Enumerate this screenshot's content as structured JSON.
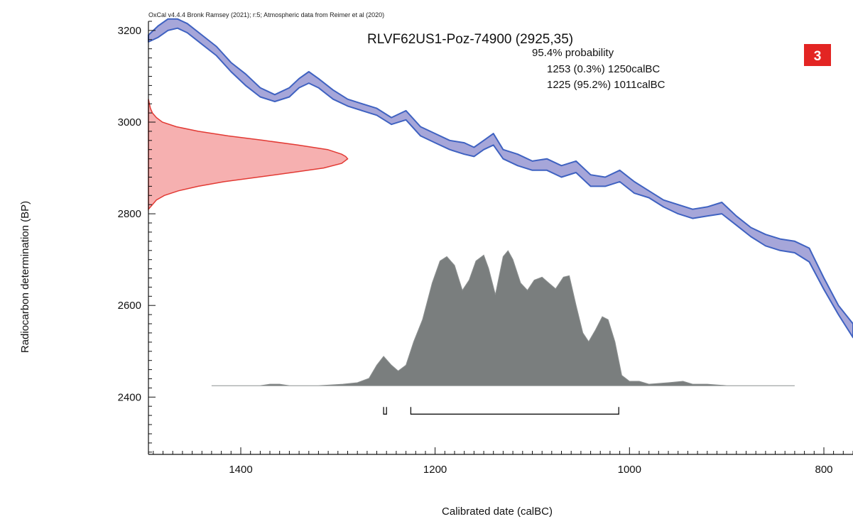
{
  "chart_data": {
    "type": "area",
    "credit": "OxCal v4.4.4 Bronk Ramsey (2021); r:5; Atmospheric data from Reimer et al (2020)",
    "title": "RLVF62US1-Poz-74900 (2925,35)",
    "probability_heading": "95.4% probability",
    "ranges": [
      {
        "label": "1253 (0.3%) 1250calBC",
        "from": 1253,
        "to": 1250
      },
      {
        "label": "1225 (95.2%) 1011calBC",
        "from": 1225,
        "to": 1011
      }
    ],
    "badge": "3",
    "xlabel": "Calibrated date (calBC)",
    "ylabel": "Radiocarbon determination (BP)",
    "xlim": [
      1495,
      770
    ],
    "ylim": [
      2275,
      3220
    ],
    "x_ticks": [
      1400,
      1200,
      1000,
      800
    ],
    "y_ticks": [
      2400,
      2600,
      2800,
      3000,
      3200
    ],
    "colors": {
      "curve_fill": "#a6a6d9",
      "curve_line": "#3f62c1",
      "measurement_fill": "#f6b0b0",
      "measurement_line": "#e23a34",
      "posterior_fill": "#7a7e7e",
      "badge": "#e32523"
    },
    "calibration_curve": {
      "dates": [
        1495,
        1485,
        1475,
        1465,
        1455,
        1440,
        1425,
        1410,
        1395,
        1380,
        1365,
        1350,
        1340,
        1330,
        1320,
        1305,
        1290,
        1275,
        1260,
        1245,
        1230,
        1215,
        1200,
        1185,
        1170,
        1160,
        1150,
        1140,
        1130,
        1115,
        1100,
        1085,
        1070,
        1055,
        1040,
        1025,
        1010,
        995,
        980,
        965,
        950,
        935,
        920,
        905,
        890,
        875,
        860,
        845,
        830,
        815,
        800,
        785,
        770
      ],
      "upper": [
        3190,
        3210,
        3225,
        3225,
        3215,
        3190,
        3165,
        3130,
        3105,
        3075,
        3060,
        3075,
        3095,
        3110,
        3095,
        3070,
        3050,
        3040,
        3030,
        3010,
        3025,
        2990,
        2975,
        2960,
        2955,
        2945,
        2960,
        2975,
        2940,
        2930,
        2915,
        2920,
        2905,
        2915,
        2885,
        2880,
        2895,
        2870,
        2850,
        2830,
        2820,
        2810,
        2815,
        2825,
        2795,
        2770,
        2755,
        2745,
        2740,
        2725,
        2660,
        2600,
        2560
      ],
      "lower": [
        3175,
        3185,
        3200,
        3205,
        3195,
        3170,
        3145,
        3110,
        3080,
        3055,
        3045,
        3055,
        3075,
        3085,
        3075,
        3050,
        3035,
        3025,
        3015,
        2995,
        3005,
        2970,
        2955,
        2940,
        2930,
        2925,
        2940,
        2950,
        2920,
        2905,
        2895,
        2895,
        2880,
        2890,
        2860,
        2860,
        2870,
        2845,
        2835,
        2815,
        2800,
        2790,
        2795,
        2800,
        2775,
        2750,
        2730,
        2720,
        2715,
        2695,
        2635,
        2580,
        2530
      ]
    },
    "measurement_distribution": {
      "bp": [
        2810,
        2820,
        2830,
        2840,
        2850,
        2860,
        2870,
        2880,
        2890,
        2900,
        2910,
        2920,
        2925,
        2930,
        2940,
        2950,
        2960,
        2970,
        2980,
        2990,
        3000,
        3010,
        3020,
        3030,
        3040,
        3050
      ],
      "density": [
        0.0,
        0.02,
        0.04,
        0.08,
        0.15,
        0.25,
        0.38,
        0.55,
        0.72,
        0.88,
        0.97,
        1.0,
        0.99,
        0.97,
        0.9,
        0.75,
        0.58,
        0.4,
        0.25,
        0.14,
        0.07,
        0.04,
        0.02,
        0.01,
        0.005,
        0.0
      ]
    },
    "posterior_distribution": {
      "dates": [
        1430,
        1380,
        1370,
        1360,
        1350,
        1320,
        1295,
        1280,
        1268,
        1260,
        1253,
        1245,
        1238,
        1230,
        1222,
        1213,
        1203,
        1195,
        1188,
        1180,
        1172,
        1165,
        1158,
        1150,
        1145,
        1138,
        1130,
        1125,
        1120,
        1112,
        1105,
        1098,
        1090,
        1083,
        1076,
        1068,
        1062,
        1055,
        1048,
        1042,
        1035,
        1028,
        1022,
        1015,
        1008,
        1000,
        990,
        980,
        960,
        945,
        935,
        920,
        900,
        830
      ],
      "density": [
        0.0,
        0.0,
        0.01,
        0.01,
        0.0,
        0.0,
        0.01,
        0.02,
        0.05,
        0.14,
        0.2,
        0.14,
        0.1,
        0.14,
        0.3,
        0.45,
        0.7,
        0.85,
        0.88,
        0.82,
        0.65,
        0.72,
        0.85,
        0.89,
        0.8,
        0.62,
        0.88,
        0.92,
        0.86,
        0.7,
        0.65,
        0.72,
        0.74,
        0.7,
        0.66,
        0.74,
        0.75,
        0.55,
        0.36,
        0.3,
        0.38,
        0.47,
        0.45,
        0.3,
        0.07,
        0.03,
        0.03,
        0.01,
        0.02,
        0.03,
        0.01,
        0.01,
        0.0,
        0.0
      ]
    }
  }
}
